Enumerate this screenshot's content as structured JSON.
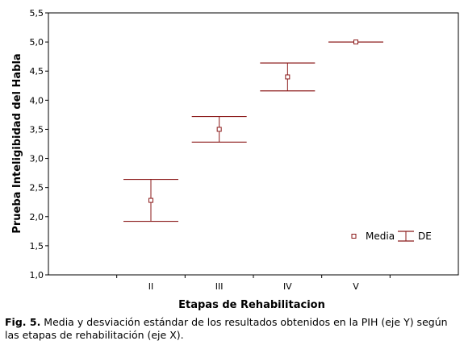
{
  "chart_data": {
    "type": "errorbar",
    "title": "",
    "xlabel": "Etapas de Rehabilitacion",
    "ylabel": "Prueba Inteligibidad del Habla",
    "categories": [
      "II",
      "III",
      "IV",
      "V"
    ],
    "ylim": [
      1.0,
      5.5
    ],
    "yticks": [
      "1,0",
      "1,5",
      "2,0",
      "2,5",
      "3,0",
      "3,5",
      "4,0",
      "4,5",
      "5,0",
      "5,5"
    ],
    "grid": false,
    "legend_position": "bottom-right",
    "colors": {
      "series": "#8b1a1a",
      "axis": "#000000"
    },
    "series": [
      {
        "name": "Media",
        "role": "mean",
        "values": [
          2.28,
          3.5,
          4.4,
          5.0
        ]
      },
      {
        "name": "DE",
        "role": "sd",
        "lower": [
          1.92,
          3.28,
          4.16,
          5.0
        ],
        "upper": [
          2.64,
          3.72,
          4.64,
          5.0
        ]
      }
    ]
  },
  "caption": {
    "label": "Fig. 5.",
    "text": " Media y desviación estándar de los resultados obtenidos en la PIH (eje Y) según las etapas de rehabilitación (eje X)."
  }
}
